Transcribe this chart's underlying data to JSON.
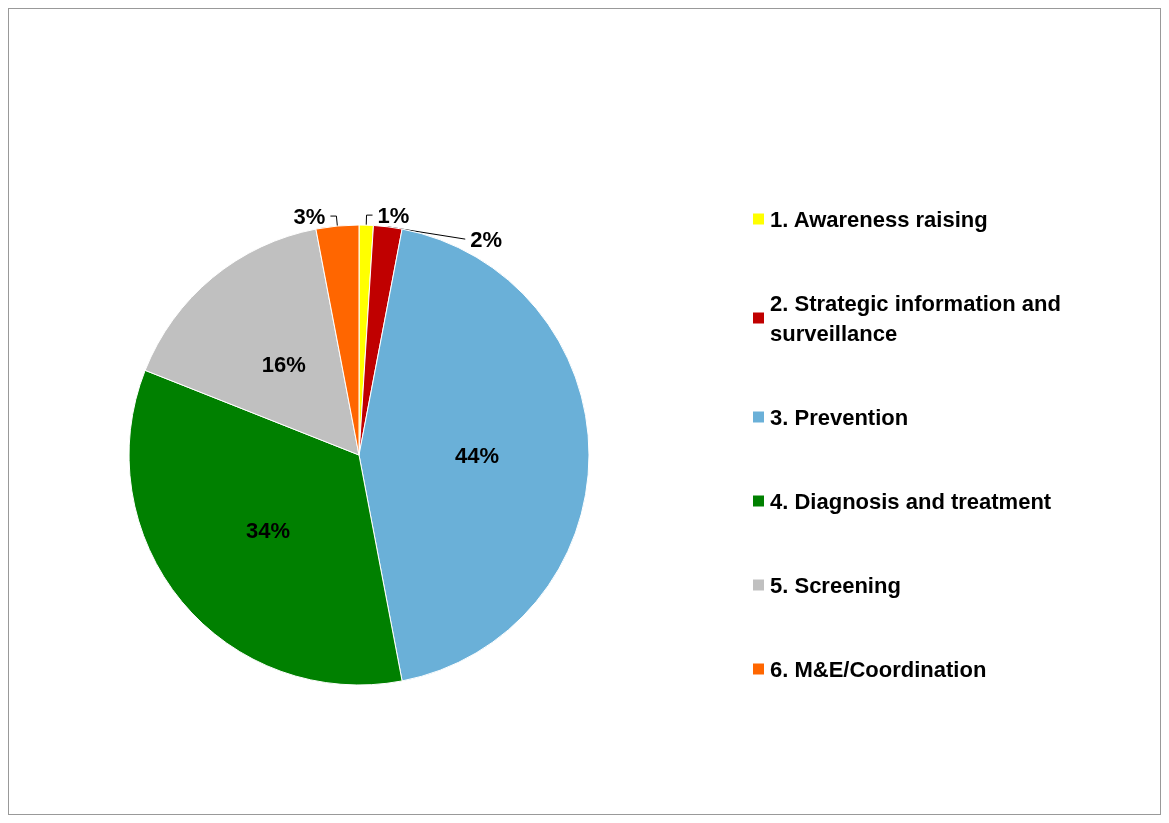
{
  "chart_data": {
    "type": "pie",
    "categories": [
      "1. Awareness raising",
      "2. Strategic information and surveillance",
      "3. Prevention",
      "4. Diagnosis and treatment",
      "5. Screening",
      "6. M&E/Coordination"
    ],
    "values": [
      1,
      2,
      44,
      34,
      16,
      3
    ],
    "colors": [
      "#ffff00",
      "#c00000",
      "#6ab0d8",
      "#008000",
      "#c0c0c0",
      "#ff6600"
    ],
    "value_labels": [
      "1%",
      "2%",
      "44%",
      "34%",
      "16%",
      "3%"
    ],
    "legend": "right"
  }
}
